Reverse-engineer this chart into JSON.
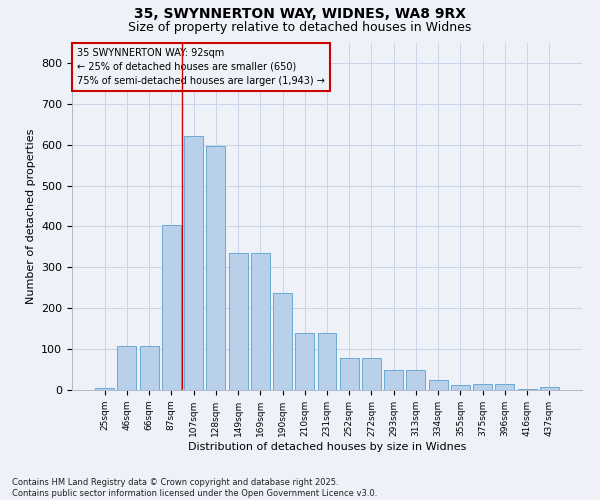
{
  "title_line1": "35, SWYNNERTON WAY, WIDNES, WA8 9RX",
  "title_line2": "Size of property relative to detached houses in Widnes",
  "xlabel": "Distribution of detached houses by size in Widnes",
  "ylabel": "Number of detached properties",
  "categories": [
    "25sqm",
    "46sqm",
    "66sqm",
    "87sqm",
    "107sqm",
    "128sqm",
    "149sqm",
    "169sqm",
    "190sqm",
    "210sqm",
    "231sqm",
    "252sqm",
    "272sqm",
    "293sqm",
    "313sqm",
    "334sqm",
    "355sqm",
    "375sqm",
    "396sqm",
    "416sqm",
    "437sqm"
  ],
  "bar_values": [
    5,
    108,
    108,
    403,
    621,
    598,
    335,
    335,
    237,
    140,
    140,
    79,
    79,
    49,
    49,
    24,
    12,
    15,
    15,
    3,
    7
  ],
  "bar_color": "#b8d0ea",
  "bar_edge_color": "#6aaad4",
  "grid_color": "#c8d4e8",
  "annotation_box_color": "#cc0000",
  "annotation_text": "35 SWYNNERTON WAY: 92sqm\n← 25% of detached houses are smaller (650)\n75% of semi-detached houses are larger (1,943) →",
  "vline_color": "#cc0000",
  "vline_x": 3.5,
  "ylim": [
    0,
    850
  ],
  "yticks": [
    0,
    100,
    200,
    300,
    400,
    500,
    600,
    700,
    800
  ],
  "footnote": "Contains HM Land Registry data © Crown copyright and database right 2025.\nContains public sector information licensed under the Open Government Licence v3.0.",
  "bg_color": "#eef2f8"
}
